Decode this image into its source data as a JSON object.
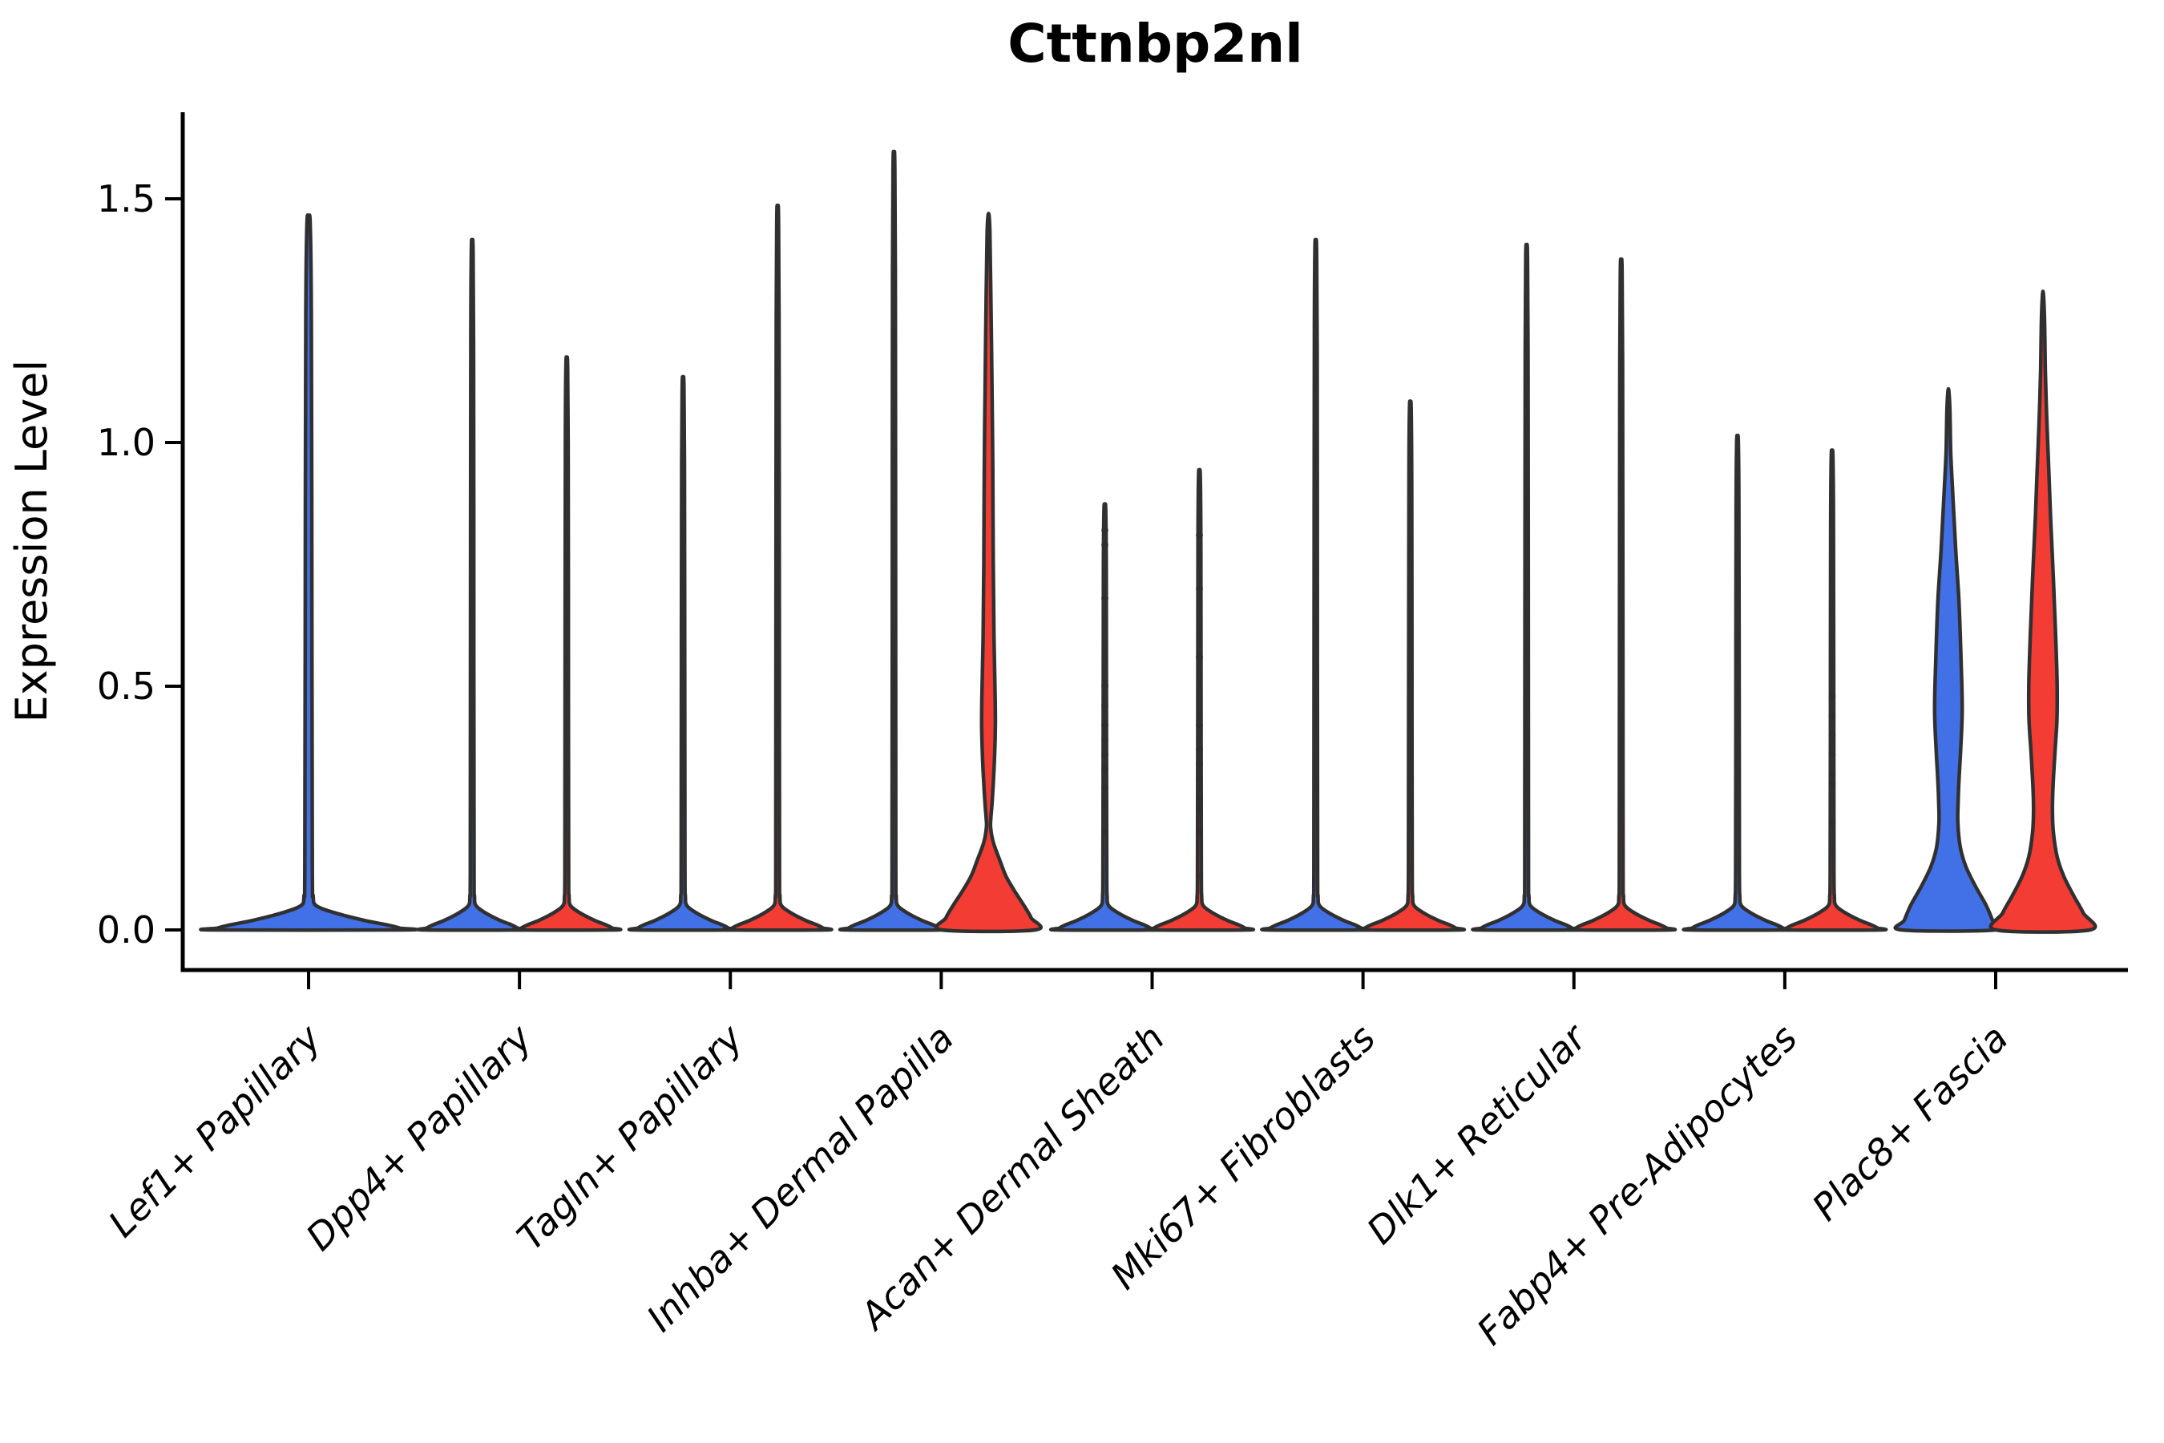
{
  "figure": {
    "title": "Cttnbp2nl"
  },
  "chart_data": {
    "type": "violin",
    "title": "Cttnbp2nl",
    "xlabel": "",
    "ylabel": "Expression Level",
    "ylim": [
      -0.08,
      1.68
    ],
    "yticks": [
      0,
      0.5,
      1.0,
      1.5
    ],
    "ytick_labels": [
      "0.0",
      "0.5",
      "1.0",
      "1.5"
    ],
    "grid": false,
    "legend": "none",
    "x_label_rotation_deg": 45,
    "x_label_style": "italic",
    "group_colors": {
      "group1": "#4270E6",
      "group2": "#F33C34"
    },
    "edge_color": "#303030",
    "dot_color": "#2e2e2e",
    "categories": [
      {
        "label": "Lef1+ Papillary",
        "violins": [
          {
            "group": "group1",
            "span": "full",
            "max": 1.46,
            "shape": "collapsed"
          }
        ]
      },
      {
        "label": "Dpp4+ Papillary",
        "violins": [
          {
            "group": "group1",
            "max": 1.41,
            "shape": "collapsed"
          },
          {
            "group": "group2",
            "max": 1.17,
            "shape": "collapsed"
          }
        ]
      },
      {
        "label": "Tagln+ Papillary",
        "violins": [
          {
            "group": "group1",
            "max": 1.13,
            "shape": "collapsed"
          },
          {
            "group": "group2",
            "max": 1.48,
            "shape": "collapsed"
          }
        ]
      },
      {
        "label": "Inhba+ Dermal Papilla",
        "violins": [
          {
            "group": "group1",
            "max": 1.59,
            "shape": "collapsed"
          },
          {
            "group": "group2",
            "max": 1.47,
            "shape": "profiled",
            "profile": [
              [
                1.47,
                0
              ],
              [
                1.43,
                0.03
              ],
              [
                1.3,
                0.05
              ],
              [
                1.1,
                0.075
              ],
              [
                0.95,
                0.09
              ],
              [
                0.75,
                0.1
              ],
              [
                0.6,
                0.115
              ],
              [
                0.48,
                0.14
              ],
              [
                0.42,
                0.145
              ],
              [
                0.36,
                0.13
              ],
              [
                0.3,
                0.1
              ],
              [
                0.26,
                0.075
              ],
              [
                0.23,
                0.05
              ],
              [
                0.21,
                0.045
              ],
              [
                0.18,
                0.1
              ],
              [
                0.14,
                0.25
              ],
              [
                0.11,
                0.37
              ],
              [
                0.08,
                0.55
              ],
              [
                0.05,
                0.75
              ],
              [
                0.025,
                0.9
              ],
              [
                0,
                0.98
              ]
            ]
          }
        ]
      },
      {
        "label": "Acan+ Dermal Sheath",
        "violins": [
          {
            "group": "group1",
            "max": 0.87,
            "shape": "collapsed",
            "dots": [
              0.82,
              0.79,
              0.68,
              0.5,
              0.46,
              0.42,
              0.39,
              0.36,
              0.33,
              0.29,
              0.26,
              0.2
            ]
          },
          {
            "group": "group2",
            "max": 0.94,
            "shape": "collapsed",
            "dots": [
              0.81,
              0.7,
              0.56,
              0.42,
              0.37,
              0.34,
              0.31,
              0.27,
              0.25,
              0.2,
              0.11
            ]
          }
        ]
      },
      {
        "label": "Mki67+ Fibroblasts",
        "violins": [
          {
            "group": "group1",
            "max": 1.41,
            "shape": "collapsed"
          },
          {
            "group": "group2",
            "max": 1.08,
            "shape": "collapsed"
          }
        ]
      },
      {
        "label": "Dlk1+ Reticular",
        "violins": [
          {
            "group": "group1",
            "max": 1.4,
            "shape": "collapsed"
          },
          {
            "group": "group2",
            "max": 1.37,
            "shape": "collapsed"
          }
        ]
      },
      {
        "label": "Fabp4+ Pre-Adipocytes",
        "violins": [
          {
            "group": "group1",
            "max": 1.01,
            "shape": "collapsed"
          },
          {
            "group": "group2",
            "max": 0.98,
            "shape": "collapsed",
            "dots": [
              0.48,
              0.44,
              0.4,
              0.36,
              0.32,
              0.3,
              0.22,
              0.16
            ]
          }
        ]
      },
      {
        "label": "Plac8+ Fascia",
        "violins": [
          {
            "group": "group1",
            "max": 1.11,
            "shape": "profiled",
            "profile": [
              [
                1.11,
                0
              ],
              [
                1.07,
                0.03
              ],
              [
                0.98,
                0.05
              ],
              [
                0.88,
                0.1
              ],
              [
                0.78,
                0.155
              ],
              [
                0.68,
                0.22
              ],
              [
                0.58,
                0.26
              ],
              [
                0.5,
                0.285
              ],
              [
                0.44,
                0.29
              ],
              [
                0.37,
                0.26
              ],
              [
                0.31,
                0.225
              ],
              [
                0.26,
                0.205
              ],
              [
                0.22,
                0.2
              ],
              [
                0.17,
                0.25
              ],
              [
                0.13,
                0.37
              ],
              [
                0.09,
                0.57
              ],
              [
                0.05,
                0.8
              ],
              [
                0.02,
                0.93
              ],
              [
                0,
                0.99
              ]
            ]
          },
          {
            "group": "group2",
            "max": 1.31,
            "shape": "profiled",
            "profile": [
              [
                1.31,
                0
              ],
              [
                1.26,
                0.03
              ],
              [
                1.15,
                0.05
              ],
              [
                1.05,
                0.08
              ],
              [
                0.95,
                0.12
              ],
              [
                0.85,
                0.16
              ],
              [
                0.72,
                0.22
              ],
              [
                0.6,
                0.27
              ],
              [
                0.5,
                0.3
              ],
              [
                0.43,
                0.295
              ],
              [
                0.36,
                0.25
              ],
              [
                0.3,
                0.215
              ],
              [
                0.25,
                0.2
              ],
              [
                0.2,
                0.22
              ],
              [
                0.15,
                0.3
              ],
              [
                0.11,
                0.44
              ],
              [
                0.07,
                0.65
              ],
              [
                0.035,
                0.85
              ],
              [
                0,
                0.99
              ]
            ]
          }
        ]
      }
    ]
  }
}
